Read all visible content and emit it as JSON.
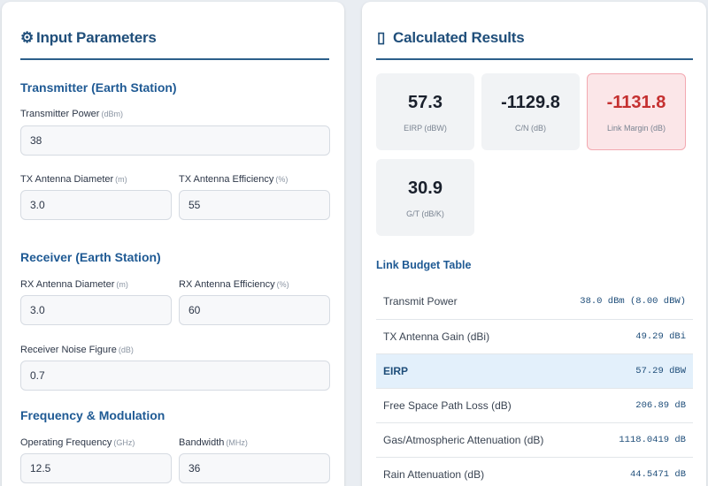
{
  "input_panel": {
    "title_icon": "⚙",
    "title": "Input Parameters",
    "transmitter": {
      "heading": "Transmitter (Earth Station)",
      "power_label": "Transmitter Power",
      "power_unit": "(dBm)",
      "power_value": "38",
      "diameter_label": "TX Antenna Diameter",
      "diameter_unit": "(m)",
      "diameter_value": "3.0",
      "efficiency_label": "TX Antenna Efficiency",
      "efficiency_unit": "(%)",
      "efficiency_value": "55"
    },
    "receiver": {
      "heading": "Receiver (Earth Station)",
      "diameter_label": "RX Antenna Diameter",
      "diameter_unit": "(m)",
      "diameter_value": "3.0",
      "efficiency_label": "RX Antenna Efficiency",
      "efficiency_unit": "(%)",
      "efficiency_value": "60",
      "noise_label": "Receiver Noise Figure",
      "noise_unit": "(dB)",
      "noise_value": "0.7"
    },
    "frequency": {
      "heading": "Frequency & Modulation",
      "freq_label": "Operating Frequency",
      "freq_unit": "(GHz)",
      "freq_value": "12.5",
      "bw_label": "Bandwidth",
      "bw_unit": "(MHz)",
      "bw_value": "36"
    }
  },
  "results_panel": {
    "title_icon": "▯",
    "title": "Calculated Results",
    "metrics": [
      {
        "value": "57.3",
        "label": "EIRP (dBW)"
      },
      {
        "value": "-1129.8",
        "label": "C/N (dB)"
      },
      {
        "value": "-1131.8",
        "label": "Link Margin (dB)"
      },
      {
        "value": "30.9",
        "label": "G/T (dB/K)"
      }
    ],
    "warning_color": "#c53030",
    "table_title": "Link Budget Table",
    "table_rows": [
      {
        "name": "Transmit Power",
        "value": "38.0 dBm (8.00 dBW)"
      },
      {
        "name": "TX Antenna Gain (dBi)",
        "value": "49.29 dBi"
      },
      {
        "name": "EIRP",
        "value": "57.29 dBW"
      },
      {
        "name": "Free Space Path Loss (dB)",
        "value": "206.89 dB"
      },
      {
        "name": "Gas/Atmospheric Attenuation (dB)",
        "value": "1118.0419 dB"
      },
      {
        "name": "Rain Attenuation (dB)",
        "value": "44.5471 dB"
      }
    ]
  }
}
